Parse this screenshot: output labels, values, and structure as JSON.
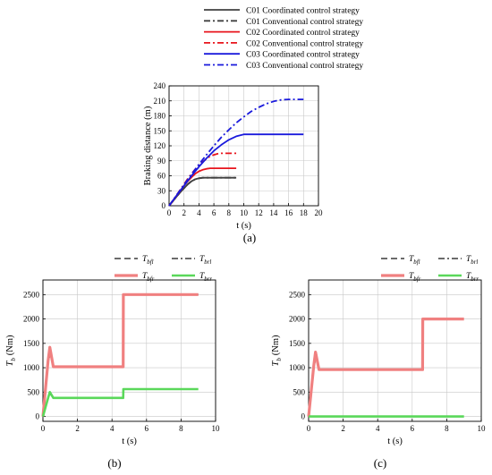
{
  "panels": {
    "a": {
      "caption": "(a)"
    },
    "b": {
      "caption": "(b)"
    },
    "c": {
      "caption": "(c)"
    }
  },
  "chart_data": [
    {
      "id": "a",
      "type": "line",
      "xlabel": "t (s)",
      "ylabel": "Braking distance (m)",
      "xlim": [
        0,
        20
      ],
      "ylim": [
        0,
        240
      ],
      "xticks": [
        0,
        2,
        4,
        6,
        8,
        10,
        12,
        14,
        16,
        18,
        20
      ],
      "yticks": [
        0,
        30,
        60,
        90,
        120,
        150,
        180,
        210,
        240
      ],
      "grid": true,
      "legend_position": "top",
      "series": [
        {
          "name": "C01 Coordinated control strategy",
          "color": "#404040",
          "dash": "solid",
          "x": [
            0,
            0.5,
            1,
            1.5,
            2,
            2.5,
            3,
            3.5,
            4,
            4.5,
            5,
            6,
            7,
            8,
            9
          ],
          "y": [
            0,
            9,
            18,
            27,
            35,
            43,
            49,
            53,
            55,
            56,
            56,
            56,
            56,
            56,
            56
          ]
        },
        {
          "name": "C01 Conventional control strategy",
          "color": "#404040",
          "dash": "dashdot",
          "x": [
            0,
            0.5,
            1,
            1.5,
            2,
            2.5,
            3,
            3.5,
            4,
            4.5,
            5,
            6,
            7,
            8,
            9
          ],
          "y": [
            0,
            9,
            18,
            27,
            35,
            43,
            49,
            53,
            55,
            56,
            56,
            56,
            56,
            56,
            56
          ]
        },
        {
          "name": "C02 Coordinated control strategy",
          "color": "#e8141c",
          "dash": "solid",
          "x": [
            0,
            0.5,
            1,
            1.5,
            2,
            2.5,
            3,
            3.5,
            4,
            4.5,
            5,
            5.5,
            6,
            7,
            8,
            9
          ],
          "y": [
            0,
            10,
            20,
            30,
            40,
            49,
            57,
            64,
            69,
            72,
            74,
            75,
            75,
            75,
            75,
            75
          ]
        },
        {
          "name": "C02 Conventional control strategy",
          "color": "#e8141c",
          "dash": "dashdot",
          "x": [
            0,
            0.5,
            1,
            1.5,
            2,
            2.5,
            3,
            3.5,
            4,
            4.5,
            5,
            5.5,
            6,
            6.5,
            7,
            8,
            9
          ],
          "y": [
            0,
            10,
            21,
            32,
            43,
            54,
            64,
            73,
            81,
            88,
            94,
            99,
            102,
            104,
            105,
            105,
            105
          ]
        },
        {
          "name": "C03 Coordinated control strategy",
          "color": "#1a1adc",
          "dash": "solid",
          "x": [
            0,
            1,
            2,
            3,
            4,
            5,
            6,
            7,
            8,
            9,
            10,
            11,
            12,
            14,
            16,
            18
          ],
          "y": [
            0,
            20,
            40,
            60,
            78,
            95,
            110,
            122,
            132,
            139,
            143,
            143,
            143,
            143,
            143,
            143
          ]
        },
        {
          "name": "C03 Conventional control strategy",
          "color": "#1a1adc",
          "dash": "dashdot",
          "x": [
            0,
            1,
            2,
            3,
            4,
            5,
            6,
            7,
            8,
            9,
            10,
            11,
            12,
            13,
            14,
            15,
            16,
            17,
            18
          ],
          "y": [
            0,
            21,
            42,
            63,
            83,
            102,
            120,
            137,
            152,
            166,
            178,
            189,
            197,
            204,
            209,
            212,
            213,
            213,
            213
          ]
        }
      ]
    },
    {
      "id": "b",
      "type": "line",
      "xlabel": "t (s)",
      "ylabel": "T",
      "ylabel_sub": "b",
      "ylabel_unit": " (Nm)",
      "xlim": [
        0,
        10
      ],
      "ylim": [
        -100,
        2800
      ],
      "xticks": [
        0,
        2,
        4,
        6,
        8,
        10
      ],
      "yticks": [
        0,
        500,
        1000,
        1500,
        2000,
        2500
      ],
      "grid": true,
      "legend_position": "top",
      "series": [
        {
          "name": "T",
          "sub": "bfl",
          "color": "#3a3a3a",
          "dash": "dashed",
          "width": 1.6,
          "x": [
            0,
            0.3,
            0.45,
            0.6,
            4.65,
            4.66,
            9
          ],
          "y": [
            0,
            1100,
            1350,
            1020,
            1020,
            2500,
            2500
          ]
        },
        {
          "name": "T",
          "sub": "brl",
          "color": "#3a3a3a",
          "dash": "dashdot",
          "width": 1.3,
          "x": [
            0,
            0.3,
            0.45,
            0.6,
            4.65,
            4.66,
            9
          ],
          "y": [
            0,
            360,
            470,
            380,
            380,
            560,
            560
          ]
        },
        {
          "name": "T",
          "sub": "bfr",
          "color": "#f08080",
          "dash": "solid",
          "width": 3.2,
          "x": [
            0,
            0.3,
            0.4,
            0.6,
            4.65,
            4.66,
            9
          ],
          "y": [
            0,
            1150,
            1420,
            1020,
            1020,
            2500,
            2500
          ]
        },
        {
          "name": "T",
          "sub": "brr",
          "color": "#5ad85a",
          "dash": "solid",
          "width": 2.6,
          "x": [
            0,
            0.3,
            0.4,
            0.6,
            4.65,
            4.66,
            9
          ],
          "y": [
            0,
            380,
            500,
            380,
            380,
            560,
            560
          ]
        }
      ]
    },
    {
      "id": "c",
      "type": "line",
      "xlabel": "t (s)",
      "ylabel": "T",
      "ylabel_sub": "b",
      "ylabel_unit": " (Nm)",
      "xlim": [
        0,
        10
      ],
      "ylim": [
        -100,
        2800
      ],
      "xticks": [
        0,
        2,
        4,
        6,
        8,
        10
      ],
      "yticks": [
        0,
        500,
        1000,
        1500,
        2000,
        2500
      ],
      "grid": true,
      "legend_position": "top",
      "series": [
        {
          "name": "T",
          "sub": "bfl",
          "color": "#3a3a3a",
          "dash": "dashed",
          "width": 1.6,
          "x": [
            0,
            0.3,
            0.45,
            0.6,
            6.6,
            6.61,
            9
          ],
          "y": [
            0,
            1000,
            1280,
            960,
            960,
            2000,
            2000
          ]
        },
        {
          "name": "T",
          "sub": "brl",
          "color": "#3a3a3a",
          "dash": "dashdot",
          "width": 1.3,
          "x": [
            0,
            9
          ],
          "y": [
            0,
            0
          ]
        },
        {
          "name": "T",
          "sub": "bfr",
          "color": "#f08080",
          "dash": "solid",
          "width": 3.2,
          "x": [
            0,
            0.3,
            0.4,
            0.6,
            6.6,
            6.61,
            9
          ],
          "y": [
            0,
            1050,
            1320,
            960,
            960,
            2000,
            2000
          ]
        },
        {
          "name": "T",
          "sub": "brr",
          "color": "#5ad85a",
          "dash": "solid",
          "width": 2.6,
          "x": [
            0,
            9
          ],
          "y": [
            0,
            0
          ]
        }
      ]
    }
  ]
}
